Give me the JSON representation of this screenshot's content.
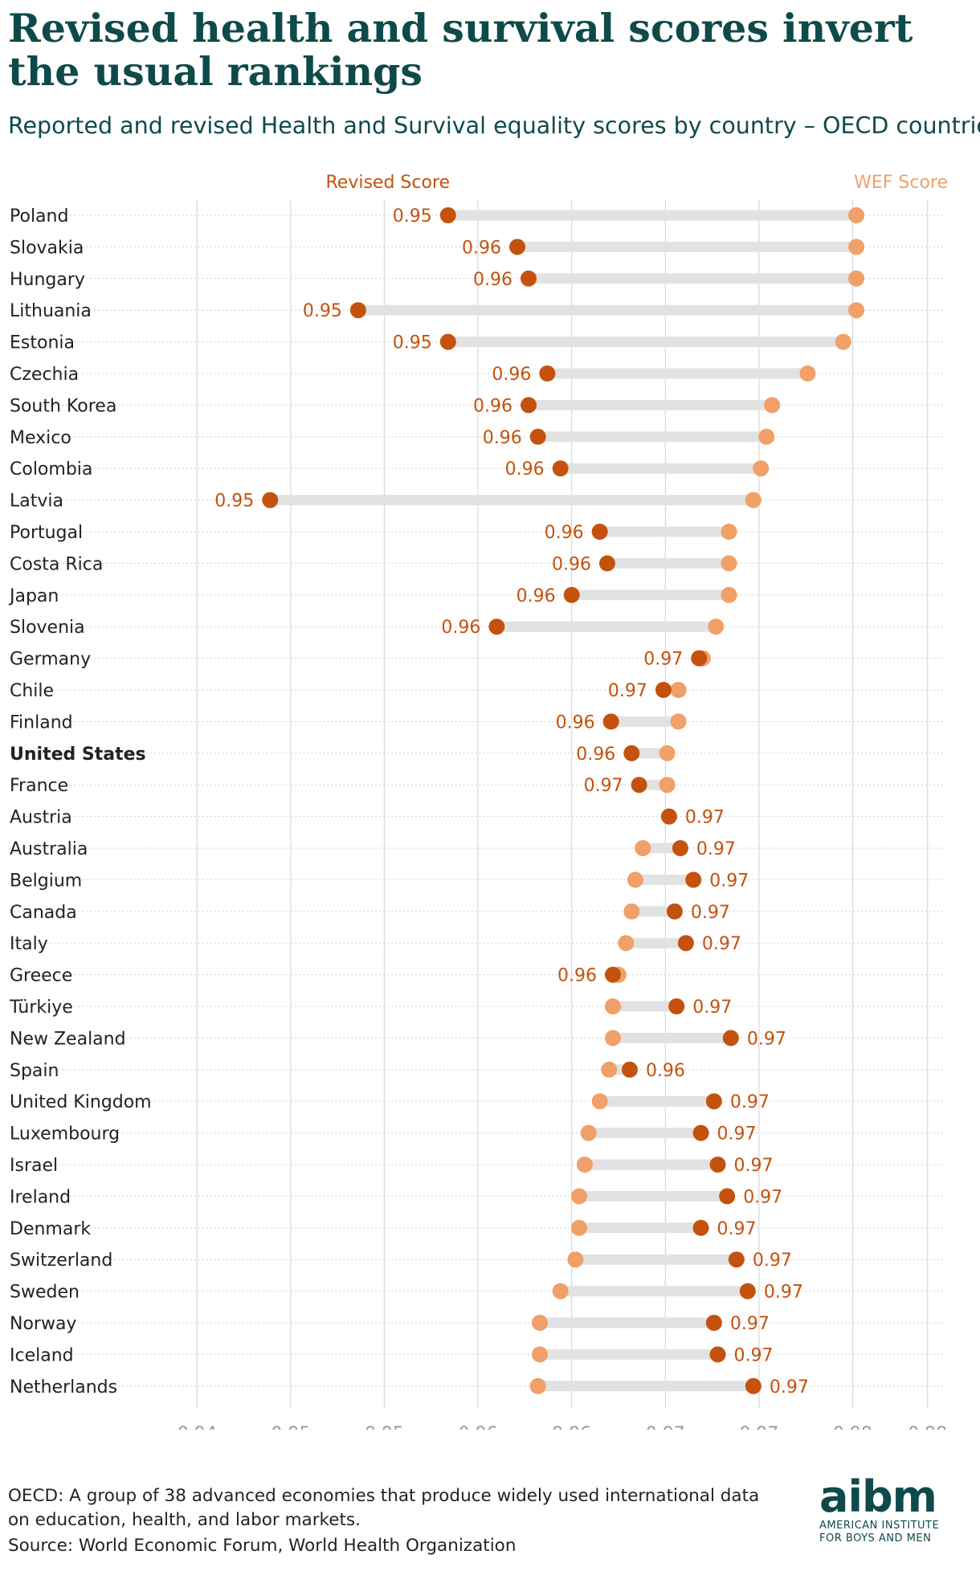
{
  "header": {
    "title": "Revised health and survival scores invert the usual rankings",
    "subtitle": "Reported and revised Health and Survival equality scores by country – OECD countries"
  },
  "footer": {
    "note": "OECD: A group of 38 advanced economies that produce widely used international data on education, health, and labor markets.",
    "source": "Source: World Economic Forum, World Health Organization"
  },
  "logo": {
    "mark": "aibm",
    "name_line1": "AMERICAN INSTITUTE",
    "name_line2": "FOR BOYS AND MEN"
  },
  "colors": {
    "revised": "#c4520e",
    "wef": "#f0a068",
    "connector": "#e2e2e2",
    "grid": "#d8d8d8",
    "label_text": "#222222",
    "tick_text": "#9a9a9a"
  },
  "chart_data": {
    "type": "dumbbell",
    "series": [
      {
        "name": "Revised Score",
        "key": "revised",
        "color": "#c4520e"
      },
      {
        "name": "WEF Score",
        "key": "wef",
        "color": "#f0a068"
      }
    ],
    "legend_position": "top",
    "xlim": [
      0.9405,
      0.9815
    ],
    "x_ticks": [
      {
        "value": 0.9415,
        "label": "0.94"
      },
      {
        "value": 0.9465,
        "label": "0.95"
      },
      {
        "value": 0.9515,
        "label": "0.95"
      },
      {
        "value": 0.9565,
        "label": "0.96"
      },
      {
        "value": 0.9615,
        "label": "0.96"
      },
      {
        "value": 0.9665,
        "label": "0.97"
      },
      {
        "value": 0.9715,
        "label": "0.97"
      },
      {
        "value": 0.9765,
        "label": "0.98"
      },
      {
        "value": 0.9805,
        "label": "0.98"
      }
    ],
    "grid": true,
    "highlighted_country": "United States",
    "rows": [
      {
        "country": "Poland",
        "revised": 0.9549,
        "wef": 0.9767,
        "label": "0.95"
      },
      {
        "country": "Slovakia",
        "revised": 0.9586,
        "wef": 0.9767,
        "label": "0.96"
      },
      {
        "country": "Hungary",
        "revised": 0.9592,
        "wef": 0.9767,
        "label": "0.96"
      },
      {
        "country": "Lithuania",
        "revised": 0.9501,
        "wef": 0.9767,
        "label": "0.95"
      },
      {
        "country": "Estonia",
        "revised": 0.9549,
        "wef": 0.976,
        "label": "0.95"
      },
      {
        "country": "Czechia",
        "revised": 0.9602,
        "wef": 0.9741,
        "label": "0.96"
      },
      {
        "country": "South Korea",
        "revised": 0.9592,
        "wef": 0.9722,
        "label": "0.96"
      },
      {
        "country": "Mexico",
        "revised": 0.9597,
        "wef": 0.9719,
        "label": "0.96"
      },
      {
        "country": "Colombia",
        "revised": 0.9609,
        "wef": 0.9716,
        "label": "0.96"
      },
      {
        "country": "Latvia",
        "revised": 0.9454,
        "wef": 0.9712,
        "label": "0.95"
      },
      {
        "country": "Portugal",
        "revised": 0.963,
        "wef": 0.9699,
        "label": "0.96"
      },
      {
        "country": "Costa Rica",
        "revised": 0.9634,
        "wef": 0.9699,
        "label": "0.96"
      },
      {
        "country": "Japan",
        "revised": 0.9615,
        "wef": 0.9699,
        "label": "0.96"
      },
      {
        "country": "Slovenia",
        "revised": 0.9575,
        "wef": 0.9692,
        "label": "0.96"
      },
      {
        "country": "Germany",
        "revised": 0.9683,
        "wef": 0.9685,
        "label": "0.97"
      },
      {
        "country": "Chile",
        "revised": 0.9664,
        "wef": 0.9672,
        "label": "0.97"
      },
      {
        "country": "Finland",
        "revised": 0.9636,
        "wef": 0.9672,
        "label": "0.96"
      },
      {
        "country": "United States",
        "revised": 0.9647,
        "wef": 0.9666,
        "label": "0.96"
      },
      {
        "country": "France",
        "revised": 0.9651,
        "wef": 0.9666,
        "label": "0.97"
      },
      {
        "country": "Austria",
        "revised": 0.9667,
        "wef": 0.9667,
        "label": "0.97"
      },
      {
        "country": "Australia",
        "revised": 0.9673,
        "wef": 0.9653,
        "label": "0.97"
      },
      {
        "country": "Belgium",
        "revised": 0.968,
        "wef": 0.9649,
        "label": "0.97"
      },
      {
        "country": "Canada",
        "revised": 0.967,
        "wef": 0.9647,
        "label": "0.97"
      },
      {
        "country": "Italy",
        "revised": 0.9676,
        "wef": 0.9644,
        "label": "0.97"
      },
      {
        "country": "Greece",
        "revised": 0.9637,
        "wef": 0.964,
        "label": "0.96"
      },
      {
        "country": "Türkiye",
        "revised": 0.9671,
        "wef": 0.9637,
        "label": "0.97"
      },
      {
        "country": "New Zealand",
        "revised": 0.97,
        "wef": 0.9637,
        "label": "0.97"
      },
      {
        "country": "Spain",
        "revised": 0.9646,
        "wef": 0.9635,
        "label": "0.96"
      },
      {
        "country": "United Kingdom",
        "revised": 0.9691,
        "wef": 0.963,
        "label": "0.97"
      },
      {
        "country": "Luxembourg",
        "revised": 0.9684,
        "wef": 0.9624,
        "label": "0.97"
      },
      {
        "country": "Israel",
        "revised": 0.9693,
        "wef": 0.9622,
        "label": "0.97"
      },
      {
        "country": "Ireland",
        "revised": 0.9698,
        "wef": 0.9619,
        "label": "0.97"
      },
      {
        "country": "Denmark",
        "revised": 0.9684,
        "wef": 0.9619,
        "label": "0.97"
      },
      {
        "country": "Switzerland",
        "revised": 0.9703,
        "wef": 0.9617,
        "label": "0.97"
      },
      {
        "country": "Sweden",
        "revised": 0.9709,
        "wef": 0.9609,
        "label": "0.97"
      },
      {
        "country": "Norway",
        "revised": 0.9691,
        "wef": 0.9598,
        "label": "0.97"
      },
      {
        "country": "Iceland",
        "revised": 0.9693,
        "wef": 0.9598,
        "label": "0.97"
      },
      {
        "country": "Netherlands",
        "revised": 0.9712,
        "wef": 0.9597,
        "label": "0.97"
      }
    ]
  }
}
